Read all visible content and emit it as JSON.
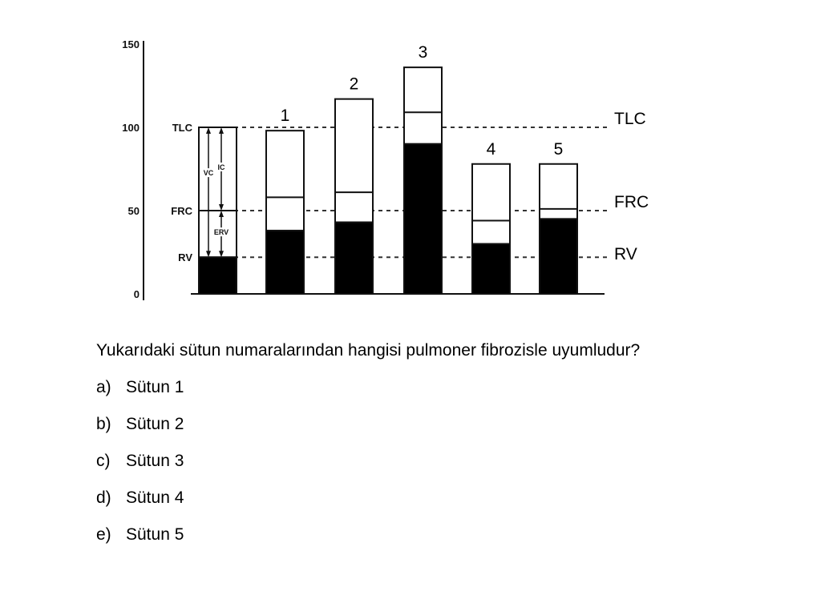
{
  "chart_data": {
    "type": "bar",
    "stacked": true,
    "ylim": [
      0,
      150
    ],
    "y_ticks": [
      "150",
      "100",
      "50",
      "0"
    ],
    "y_tick_values": [
      150,
      100,
      50,
      0
    ],
    "reference_labels": [
      "TLC",
      "FRC",
      "RV"
    ],
    "reference_values": [
      100,
      50,
      22
    ],
    "reference_lines": {
      "TLC": 100,
      "FRC": 50,
      "RV": 22
    },
    "right_labels": [
      "TLC",
      "FRC",
      "RV"
    ],
    "bracket_labels": [
      "VC",
      "IC",
      "ERV"
    ],
    "normal_column": {
      "rv": 22,
      "frc": 50,
      "tlc": 100
    },
    "categories": [
      "1",
      "2",
      "3",
      "4",
      "5"
    ],
    "columns": [
      {
        "label": "1",
        "rv": 38,
        "frc": 58,
        "tlc": 98
      },
      {
        "label": "2",
        "rv": 43,
        "frc": 61,
        "tlc": 117
      },
      {
        "label": "3",
        "rv": 90,
        "frc": 109,
        "tlc": 136
      },
      {
        "label": "4",
        "rv": 30,
        "frc": 44,
        "tlc": 78
      },
      {
        "label": "5",
        "rv": 45,
        "frc": 51,
        "tlc": 78
      }
    ],
    "colors": {
      "rv": "#000000",
      "volume": "#ffffff",
      "stroke": "#111111"
    }
  },
  "question": {
    "text": "Yukarıdaki sütun numaralarından hangisi pulmoner fibrozisle uyumludur?",
    "options": [
      {
        "letter": "a)",
        "text": "Sütun 1"
      },
      {
        "letter": "b)",
        "text": "Sütun 2"
      },
      {
        "letter": "c)",
        "text": "Sütun 3"
      },
      {
        "letter": "d)",
        "text": "Sütun 4"
      },
      {
        "letter": "e)",
        "text": "Sütun 5"
      }
    ]
  }
}
